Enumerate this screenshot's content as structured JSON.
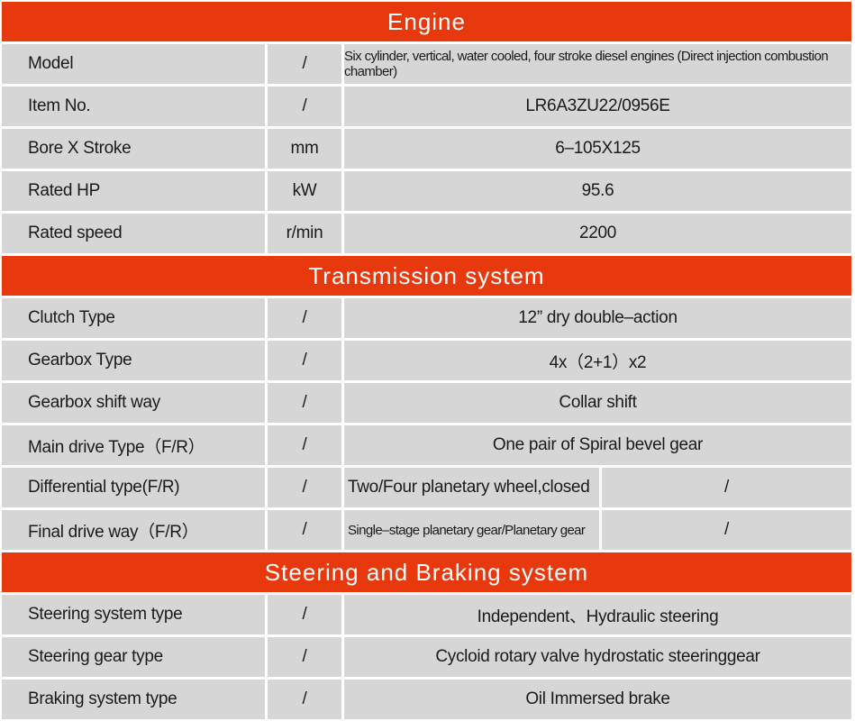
{
  "sections": [
    {
      "title": "Engine",
      "rows": [
        {
          "label": "Model",
          "unit": "/",
          "value": "Six cylinder, vertical, water cooled, four stroke diesel engines (Direct injection combustion chamber)",
          "small": true
        },
        {
          "label": "Item No.",
          "unit": "/",
          "value": "LR6A3ZU22/0956E"
        },
        {
          "label": "Bore X Stroke",
          "unit": "mm",
          "value": "6–105X125"
        },
        {
          "label": "Rated HP",
          "unit": "kW",
          "value": "95.6"
        },
        {
          "label": "Rated speed",
          "unit": "r/min",
          "value": "2200"
        }
      ]
    },
    {
      "title": "Transmission system",
      "rows": [
        {
          "label": "Clutch Type",
          "unit": "/",
          "value": "12” dry double–action"
        },
        {
          "label": "Gearbox Type",
          "unit": "/",
          "value": "4x（2+1）x2"
        },
        {
          "label": "Gearbox shift way",
          "unit": "/",
          "value": "Collar shift"
        },
        {
          "label": "Main drive Type（F/R）",
          "unit": "/",
          "value": "One pair of Spiral bevel gear"
        },
        {
          "label": "Differential type(F/R)",
          "unit": "/",
          "value": "Two/Four planetary wheel,closed",
          "value2": "/"
        },
        {
          "label": "Final drive way（F/R）",
          "unit": "/",
          "value": "Single–stage planetary gear/Planetary gear",
          "value2": "/",
          "small": true
        }
      ]
    },
    {
      "title": "Steering and Braking system",
      "rows": [
        {
          "label": "Steering system type",
          "unit": "/",
          "value": "Independent、Hydraulic steering"
        },
        {
          "label": "Steering gear type",
          "unit": "/",
          "value": "Cycloid rotary valve  hydrostatic steeringgear"
        },
        {
          "label": "Braking system type",
          "unit": "/",
          "value": "Oil Immersed brake"
        }
      ]
    }
  ],
  "colors": {
    "header": "#e8380e",
    "cell": "#d6d6d6"
  }
}
